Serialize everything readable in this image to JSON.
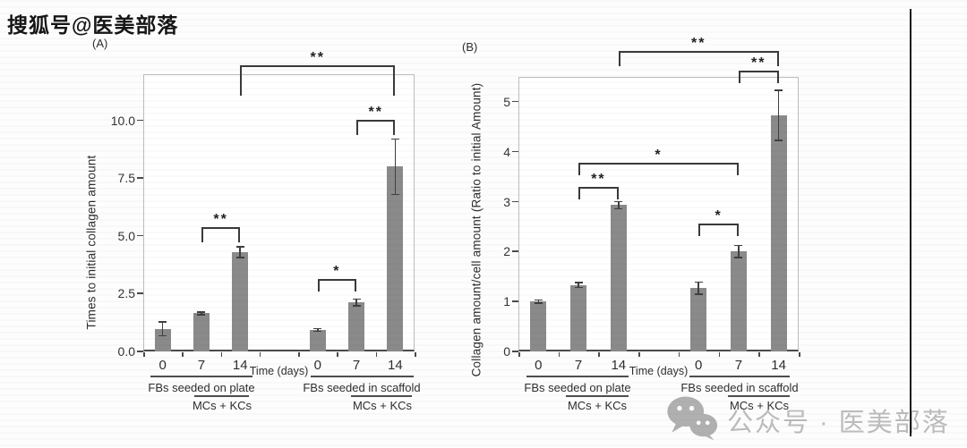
{
  "watermarks": {
    "top_left_text": "搜狐号@医美部落",
    "bottom_right_text": "公众号 · 医美部落",
    "bottom_right_icon": "wechat-icon"
  },
  "colors": {
    "bar": "#8a8a8a",
    "plot_border": "#bdbdbd",
    "axis": "#4a4a4a",
    "bracket": "#3a3a3a",
    "text": "#2e2e2e",
    "watermark_gray": "#bcbcbc",
    "wechat_icon_gray": "#adadad"
  },
  "chart_data": [
    {
      "id": "A",
      "panel_label": "(A)",
      "type": "bar",
      "ylabel": "Times to initial collagen amount",
      "xlabel": "Time (days)",
      "ylim": [
        0,
        12
      ],
      "ytick_values": [
        0,
        2.5,
        5,
        7.5,
        10
      ],
      "ytick_labels": [
        "0.0",
        "2.5",
        "5.0",
        "7.5",
        "10.0"
      ],
      "categories": [
        "0",
        "7",
        "14",
        "0",
        "7",
        "14"
      ],
      "values": [
        0.97,
        1.65,
        4.3,
        0.93,
        2.12,
        8.0
      ],
      "errors": [
        0.3,
        0.06,
        0.23,
        0.05,
        0.15,
        1.2
      ],
      "groups": [
        {
          "label": "FBs seeded on plate",
          "sublabel": "MCs + KCs"
        },
        {
          "label": "FBs seeded in scaffold",
          "sublabel": "MCs + KCs"
        }
      ],
      "significance": [
        {
          "pair": [
            1,
            2
          ],
          "label": "**"
        },
        {
          "pair": [
            3,
            4
          ],
          "label": "*"
        },
        {
          "pair": [
            4,
            5
          ],
          "label": "**"
        },
        {
          "pair": [
            2,
            5
          ],
          "label": "**"
        }
      ],
      "grid": false,
      "legend": "none"
    },
    {
      "id": "B",
      "panel_label": "(B)",
      "type": "bar",
      "ylabel": "Collagen amount/cell amount (Ratio to initial Amount)",
      "xlabel": "Time (days)",
      "ylim": [
        0,
        5.5
      ],
      "ytick_values": [
        0,
        1,
        2,
        3,
        4,
        5
      ],
      "ytick_labels": [
        "0",
        "1",
        "2",
        "3",
        "4",
        "5"
      ],
      "categories": [
        "0",
        "7",
        "14",
        "0",
        "7",
        "14"
      ],
      "values": [
        1.0,
        1.33,
        2.93,
        1.27,
        2.0,
        4.73
      ],
      "errors": [
        0.03,
        0.05,
        0.07,
        0.12,
        0.12,
        0.5
      ],
      "groups": [
        {
          "label": "FBs seeded on plate",
          "sublabel": "MCs + KCs"
        },
        {
          "label": "FBs seeded in scaffold",
          "sublabel": "MCs + KCs"
        }
      ],
      "significance": [
        {
          "pair": [
            1,
            2
          ],
          "label": "**"
        },
        {
          "pair": [
            3,
            4
          ],
          "label": "*"
        },
        {
          "pair": [
            1,
            4
          ],
          "label": "*"
        },
        {
          "pair": [
            4,
            5
          ],
          "label": "**"
        },
        {
          "pair": [
            2,
            5
          ],
          "label": "**"
        }
      ],
      "grid": false,
      "legend": "none"
    }
  ]
}
